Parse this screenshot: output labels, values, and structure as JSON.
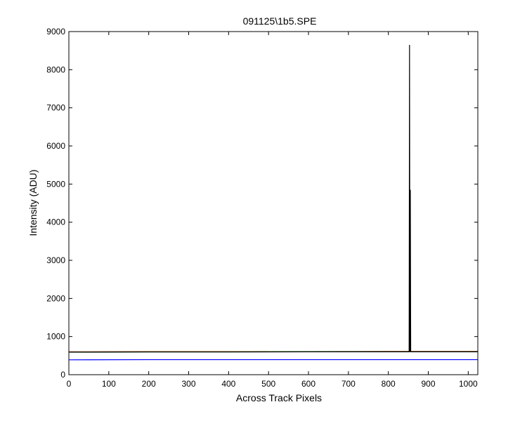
{
  "chart_data": {
    "type": "line",
    "title": "091125\\1b5.SPE",
    "xlabel": "Across Track Pixels",
    "ylabel": "Intensity (ADU)",
    "xlim": [
      0,
      1024
    ],
    "ylim": [
      0,
      9000
    ],
    "xticks": [
      0,
      100,
      200,
      300,
      400,
      500,
      600,
      700,
      800,
      900,
      1000
    ],
    "yticks": [
      0,
      1000,
      2000,
      3000,
      4000,
      5000,
      6000,
      7000,
      8000,
      9000
    ],
    "grid": false,
    "legend": "none",
    "series": [
      {
        "color": "#0000ff",
        "points": [
          [
            0,
            390
          ],
          [
            200,
            395
          ],
          [
            400,
            395
          ],
          [
            600,
            395
          ],
          [
            800,
            395
          ],
          [
            1024,
            395
          ]
        ]
      },
      {
        "color": "#ff0000",
        "points": [
          [
            0,
            600
          ],
          [
            200,
            605
          ],
          [
            400,
            605
          ],
          [
            600,
            605
          ],
          [
            800,
            610
          ],
          [
            1024,
            610
          ]
        ]
      },
      {
        "color": "#008000",
        "points": [
          [
            0,
            595
          ],
          [
            200,
            600
          ],
          [
            400,
            600
          ],
          [
            600,
            605
          ],
          [
            800,
            605
          ],
          [
            1024,
            605
          ]
        ]
      },
      {
        "color": "#000000",
        "points": [
          [
            0,
            590
          ],
          [
            200,
            595
          ],
          [
            400,
            595
          ],
          [
            600,
            600
          ],
          [
            800,
            600
          ],
          [
            850,
            600
          ],
          [
            852,
            600
          ],
          [
            853,
            8650
          ],
          [
            854,
            600
          ],
          [
            855,
            4850
          ],
          [
            856,
            600
          ],
          [
            1024,
            600
          ]
        ]
      }
    ]
  }
}
